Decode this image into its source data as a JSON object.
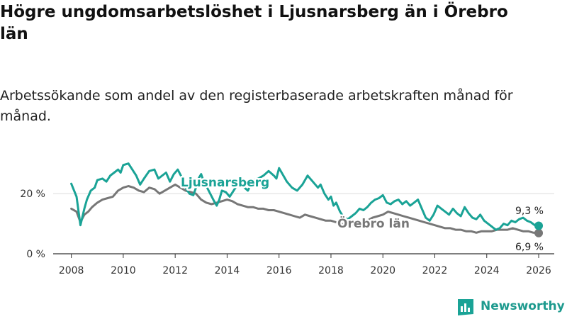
{
  "header": {
    "title": "Högre ungdomsarbetslöshet i Ljusnarsberg än i Örebro län",
    "subtitle": "Arbetssökande som andel av den registerbaserade arbetskraften månad för månad."
  },
  "brand": {
    "name": "Newsworthy"
  },
  "colors": {
    "ljusnarsberg": "#1aa396",
    "orebro": "#777777",
    "axis": "#333333",
    "grid": "#dddddd"
  },
  "chart_data": {
    "type": "line",
    "title": "Högre ungdomsarbetslöshet i Ljusnarsberg än i Örebro län",
    "xlabel": "",
    "ylabel": "",
    "xlim": [
      2007.3,
      2026.6
    ],
    "ylim": [
      0,
      33
    ],
    "x_ticks": [
      2008,
      2010,
      2012,
      2014,
      2016,
      2018,
      2020,
      2022,
      2024,
      2026
    ],
    "x_tick_labels": [
      "2008",
      "2010",
      "2012",
      "2014",
      "2016",
      "2018",
      "2020",
      "2022",
      "2024",
      "2026"
    ],
    "y_ticks": [
      0,
      20
    ],
    "y_tick_labels": [
      "0 %",
      "20 %"
    ],
    "series": [
      {
        "name": "Ljusnarsberg",
        "label": "Ljusnarsberg",
        "end_label": "9,3 %",
        "x": [
          2008.0,
          2008.2,
          2008.35,
          2008.5,
          2008.6,
          2008.75,
          2008.9,
          2009.0,
          2009.2,
          2009.35,
          2009.5,
          2009.65,
          2009.8,
          2009.9,
          2010.0,
          2010.2,
          2010.35,
          2010.5,
          2010.65,
          2010.8,
          2011.0,
          2011.2,
          2011.35,
          2011.5,
          2011.65,
          2011.8,
          2011.95,
          2012.1,
          2012.25,
          2012.4,
          2012.55,
          2012.7,
          2012.8,
          2012.9,
          2013.0,
          2013.1,
          2013.2,
          2013.35,
          2013.5,
          2013.6,
          2013.7,
          2013.8,
          2013.95,
          2014.1,
          2014.25,
          2014.4,
          2014.6,
          2014.8,
          2015.0,
          2015.2,
          2015.4,
          2015.6,
          2015.8,
          2015.9,
          2016.0,
          2016.1,
          2016.3,
          2016.5,
          2016.7,
          2016.9,
          2017.1,
          2017.3,
          2017.5,
          2017.6,
          2017.75,
          2017.9,
          2018.0,
          2018.1,
          2018.2,
          2018.35,
          2018.5,
          2018.65,
          2018.8,
          2018.95,
          2019.1,
          2019.25,
          2019.4,
          2019.55,
          2019.7,
          2019.85,
          2020.0,
          2020.15,
          2020.3,
          2020.45,
          2020.6,
          2020.75,
          2020.9,
          2021.05,
          2021.2,
          2021.35,
          2021.5,
          2021.65,
          2021.8,
          2021.95,
          2022.1,
          2022.25,
          2022.4,
          2022.55,
          2022.7,
          2022.85,
          2023.0,
          2023.15,
          2023.3,
          2023.45,
          2023.6,
          2023.75,
          2023.9,
          2024.05,
          2024.2,
          2024.35,
          2024.5,
          2024.65,
          2024.8,
          2024.95,
          2025.1,
          2025.25,
          2025.4,
          2025.55,
          2025.7,
          2025.85,
          2026.0
        ],
        "values": [
          23.3,
          19,
          9.5,
          15,
          18,
          21,
          22,
          24.5,
          25,
          24,
          26,
          27,
          28,
          27,
          29.5,
          30,
          28,
          26,
          23,
          25,
          27.5,
          28,
          25,
          26,
          27,
          24,
          26.5,
          28,
          25.5,
          22,
          20,
          19.5,
          22,
          25,
          26.5,
          24,
          22.5,
          20,
          17.5,
          16,
          18,
          21,
          20.5,
          19,
          21,
          23,
          22.5,
          21,
          24.5,
          25,
          26,
          27.5,
          26,
          25,
          28.5,
          27,
          24,
          22,
          21,
          23,
          26,
          24,
          22,
          23,
          20,
          18,
          19,
          16,
          17,
          14,
          12,
          11.5,
          12.5,
          13.5,
          15,
          14.5,
          15.5,
          17,
          18,
          18.5,
          19.5,
          17,
          16.5,
          17.5,
          18,
          16.5,
          17.5,
          16,
          17,
          18,
          15,
          12,
          11,
          13,
          16,
          15,
          14,
          13,
          15,
          13.5,
          12.5,
          15.5,
          13.5,
          12,
          11.5,
          13,
          11,
          10,
          9,
          8,
          8.5,
          10,
          9.5,
          11,
          10.5,
          11.5,
          12,
          11,
          10.5,
          9.5,
          9.3
        ]
      },
      {
        "name": "Örebro län",
        "label": "Örebro län",
        "end_label": "6,9 %",
        "x": [
          2008.0,
          2008.2,
          2008.35,
          2008.5,
          2008.65,
          2008.8,
          2009.0,
          2009.2,
          2009.4,
          2009.6,
          2009.8,
          2010.0,
          2010.2,
          2010.4,
          2010.6,
          2010.8,
          2011.0,
          2011.2,
          2011.4,
          2011.6,
          2011.8,
          2012.0,
          2012.2,
          2012.4,
          2012.6,
          2012.8,
          2013.0,
          2013.2,
          2013.4,
          2013.6,
          2013.8,
          2014.0,
          2014.2,
          2014.4,
          2014.6,
          2014.8,
          2015.0,
          2015.2,
          2015.4,
          2015.6,
          2015.8,
          2016.0,
          2016.2,
          2016.4,
          2016.6,
          2016.8,
          2017.0,
          2017.2,
          2017.4,
          2017.6,
          2017.8,
          2018.0,
          2018.2,
          2018.4,
          2018.6,
          2018.8,
          2019.0,
          2019.2,
          2019.4,
          2019.6,
          2019.8,
          2020.0,
          2020.2,
          2020.4,
          2020.6,
          2020.8,
          2021.0,
          2021.2,
          2021.4,
          2021.6,
          2021.8,
          2022.0,
          2022.2,
          2022.4,
          2022.6,
          2022.8,
          2023.0,
          2023.2,
          2023.4,
          2023.6,
          2023.8,
          2024.0,
          2024.2,
          2024.4,
          2024.6,
          2024.8,
          2025.0,
          2025.2,
          2025.4,
          2025.6,
          2025.8,
          2026.0
        ],
        "values": [
          15,
          14,
          10.5,
          13,
          14,
          15.5,
          17,
          18,
          18.5,
          19,
          21,
          22,
          22.5,
          22,
          21,
          20.5,
          22,
          21.5,
          20,
          21,
          22,
          23,
          22,
          21,
          20.5,
          20,
          18,
          17,
          16.5,
          17,
          17.5,
          18,
          17.5,
          16.5,
          16,
          15.5,
          15.5,
          15,
          15,
          14.5,
          14.5,
          14,
          13.5,
          13,
          12.5,
          12,
          13,
          12.5,
          12,
          11.5,
          11,
          11,
          10.5,
          10,
          9.5,
          9.5,
          10,
          10.5,
          11,
          12,
          12.5,
          13,
          14,
          13.5,
          13,
          12.5,
          12,
          11.5,
          11,
          10.5,
          10,
          9.5,
          9,
          8.5,
          8.5,
          8,
          8,
          7.5,
          7.5,
          7,
          7.5,
          7.5,
          7.5,
          8,
          8,
          8,
          8.5,
          8,
          7.5,
          7.5,
          7,
          6.9
        ]
      }
    ]
  }
}
